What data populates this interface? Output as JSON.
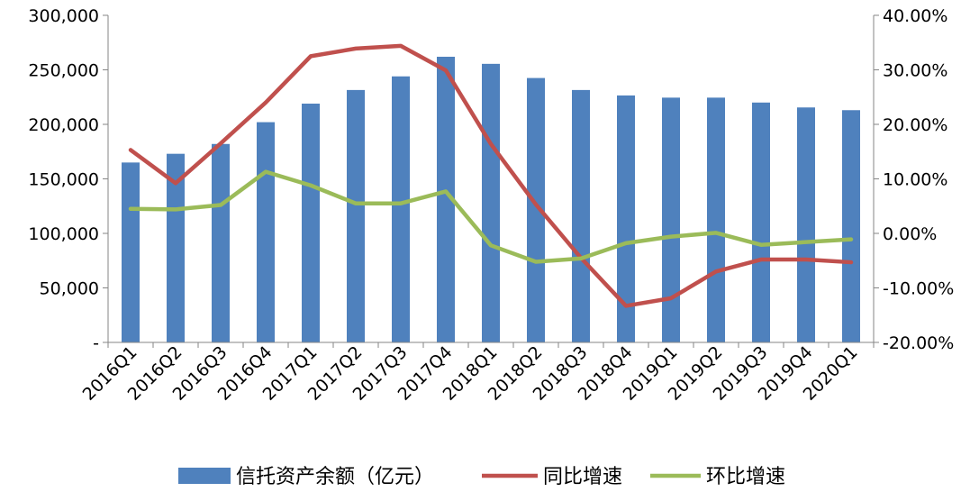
{
  "chart_data": {
    "type": "bar",
    "categories": [
      "2016Q1",
      "2016Q2",
      "2016Q3",
      "2016Q4",
      "2017Q1",
      "2017Q2",
      "2017Q3",
      "2017Q4",
      "2018Q1",
      "2018Q2",
      "2018Q3",
      "2018Q4",
      "2019Q1",
      "2019Q2",
      "2019Q3",
      "2019Q4",
      "2020Q1"
    ],
    "series": [
      {
        "name": "信托资产余额（亿元）",
        "type": "bar",
        "axis": "left",
        "color": "#4F81BD",
        "values": [
          165000,
          173000,
          182000,
          202000,
          219000,
          231500,
          244000,
          262000,
          255500,
          242500,
          231500,
          226500,
          224500,
          224500,
          220000,
          215500,
          213000
        ]
      },
      {
        "name": "同比增速",
        "type": "line",
        "axis": "right",
        "color": "#C0504D",
        "values": [
          15.3,
          9.2,
          16.5,
          24.0,
          32.5,
          33.9,
          34.4,
          29.9,
          16.4,
          5.3,
          -4.5,
          -13.3,
          -11.9,
          -7.0,
          -4.8,
          -4.8,
          -5.3
        ]
      },
      {
        "name": "环比增速",
        "type": "line",
        "axis": "right",
        "color": "#9BBB59",
        "values": [
          4.5,
          4.4,
          5.2,
          11.3,
          8.8,
          5.5,
          5.5,
          7.7,
          -2.2,
          -5.2,
          -4.6,
          -1.8,
          -0.6,
          0.1,
          -2.1,
          -1.6,
          -1.1
        ]
      }
    ],
    "ylim": [
      0,
      300000
    ],
    "y2lim": [
      -20,
      40
    ],
    "yticks": [
      "-",
      "50,000",
      "100,000",
      "150,000",
      "200,000",
      "250,000",
      "300,000"
    ],
    "y2ticks": [
      "-20.00%",
      "-10.00%",
      "0.00%",
      "10.00%",
      "20.00%",
      "30.00%",
      "40.00%"
    ],
    "legend": "bottom",
    "grid": false
  }
}
